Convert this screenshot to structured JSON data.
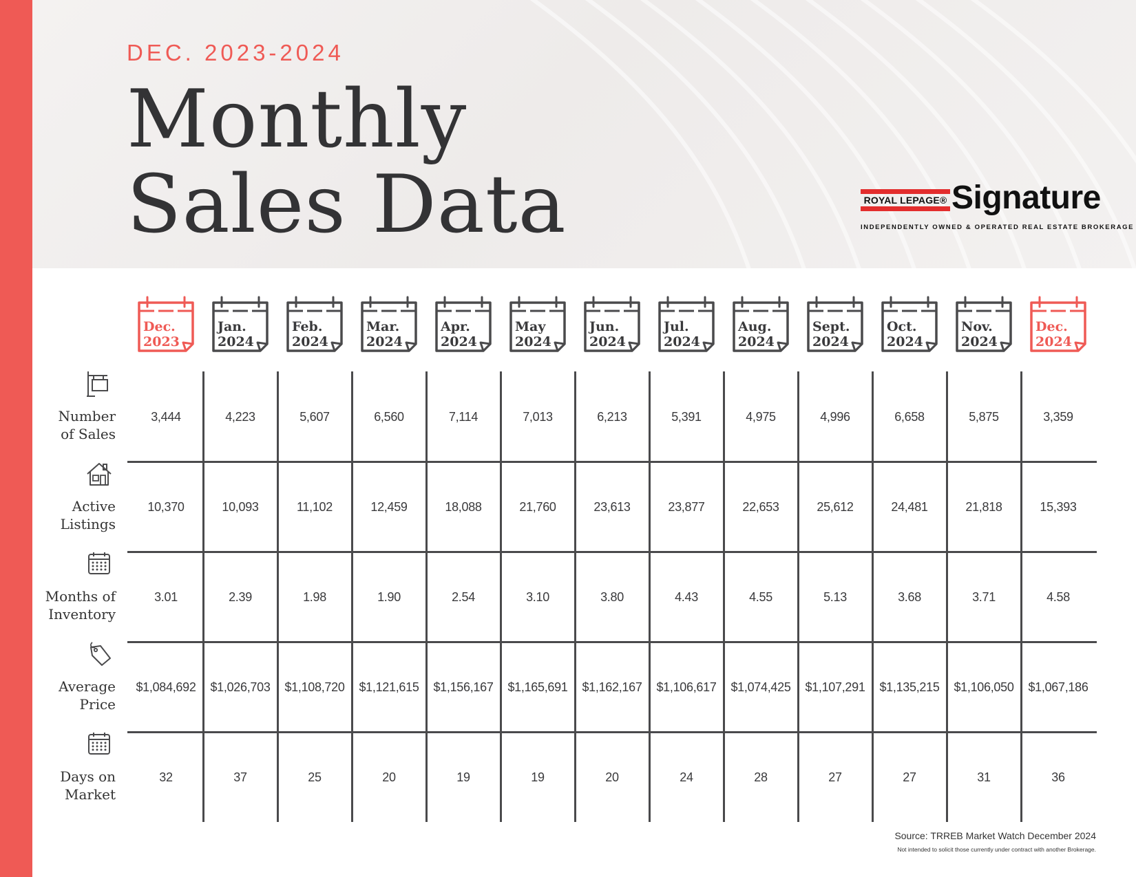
{
  "header": {
    "subtitle": "DEC. 2023-2024",
    "title_line1": "Monthly",
    "title_line2": "Sales Data"
  },
  "brand": {
    "royal_lepage": "ROYAL LEPAGE®",
    "name": "Signature",
    "tagline": "INDEPENDENTLY OWNED & OPERATED REAL ESTATE BROKERAGE"
  },
  "months": [
    {
      "name": "Dec.",
      "year": "2023",
      "highlight": true
    },
    {
      "name": "Jan.",
      "year": "2024",
      "highlight": false
    },
    {
      "name": "Feb.",
      "year": "2024",
      "highlight": false
    },
    {
      "name": "Mar.",
      "year": "2024",
      "highlight": false
    },
    {
      "name": "Apr.",
      "year": "2024",
      "highlight": false
    },
    {
      "name": "May",
      "year": "2024",
      "highlight": false
    },
    {
      "name": "Jun.",
      "year": "2024",
      "highlight": false
    },
    {
      "name": "Jul.",
      "year": "2024",
      "highlight": false
    },
    {
      "name": "Aug.",
      "year": "2024",
      "highlight": false
    },
    {
      "name": "Sept.",
      "year": "2024",
      "highlight": false
    },
    {
      "name": "Oct.",
      "year": "2024",
      "highlight": false
    },
    {
      "name": "Nov.",
      "year": "2024",
      "highlight": false
    },
    {
      "name": "Dec.",
      "year": "2024",
      "highlight": true
    }
  ],
  "rows": [
    {
      "line1": "Number",
      "line2": "of Sales",
      "icon": "sign-post-icon",
      "values": [
        "3,444",
        "4,223",
        "5,607",
        "6,560",
        "7,114",
        "7,013",
        "6,213",
        "5,391",
        "4,975",
        "4,996",
        "6,658",
        "5,875",
        "3,359"
      ]
    },
    {
      "line1": "Active",
      "line2": "Listings",
      "icon": "house-icon",
      "values": [
        "10,370",
        "10,093",
        "11,102",
        "12,459",
        "18,088",
        "21,760",
        "23,613",
        "23,877",
        "22,653",
        "25,612",
        "24,481",
        "21,818",
        "15,393"
      ]
    },
    {
      "line1": "Months of",
      "line2": "Inventory",
      "icon": "calendar-icon",
      "values": [
        "3.01",
        "2.39",
        "1.98",
        "1.90",
        "2.54",
        "3.10",
        "3.80",
        "4.43",
        "4.55",
        "5.13",
        "3.68",
        "3.71",
        "4.58"
      ]
    },
    {
      "line1": "Average",
      "line2": "Price",
      "icon": "price-tag-icon",
      "values": [
        "$1,084,692",
        "$1,026,703",
        "$1,108,720",
        "$1,121,615",
        "$1,156,167",
        "$1,165,691",
        "$1,162,167",
        "$1,106,617",
        "$1,074,425",
        "$1,107,291",
        "$1,135,215",
        "$1,106,050",
        "$1,067,186"
      ]
    },
    {
      "line1": "Days on",
      "line2": "Market",
      "icon": "calendar-icon",
      "values": [
        "32",
        "37",
        "25",
        "20",
        "19",
        "19",
        "20",
        "24",
        "28",
        "27",
        "27",
        "31",
        "36"
      ]
    }
  ],
  "footer": {
    "source": "Source: TRREB Market Watch December 2024",
    "disclaimer": "Not intended to solicit those currently under contract with another Brokerage."
  },
  "colors": {
    "accent": "#ef5a55",
    "text": "#3a3a3c",
    "grid": "#4a4a4c"
  }
}
